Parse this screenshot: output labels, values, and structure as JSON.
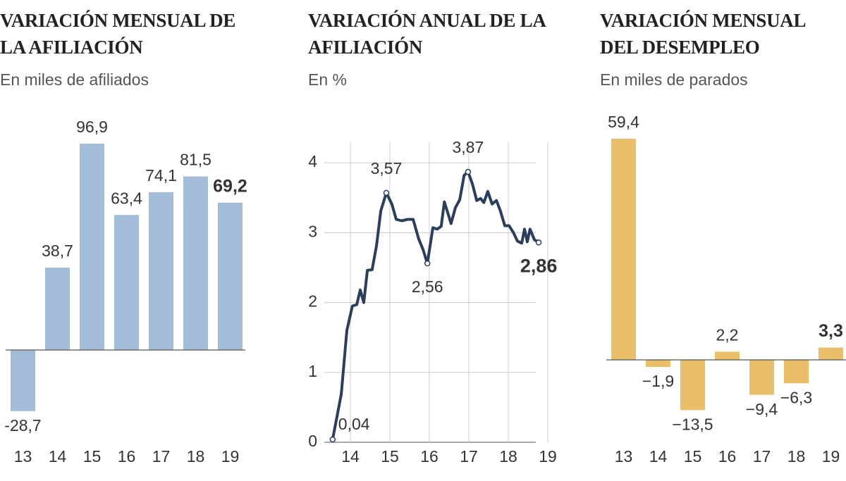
{
  "chart_data": [
    {
      "type": "bar",
      "title": "VARIACIÓN MENSUAL DE LA AFILIACIÓN",
      "subtitle": "En miles de afiliados",
      "categories": [
        "13",
        "14",
        "15",
        "16",
        "17",
        "18",
        "19"
      ],
      "values": [
        -28.7,
        38.7,
        96.9,
        63.4,
        74.1,
        81.5,
        69.2
      ],
      "value_labels": [
        "-28,7",
        "38,7",
        "96,9",
        "63,4",
        "74,1",
        "81,5",
        "69,2"
      ],
      "color": "#a3bcd9"
    },
    {
      "type": "line",
      "title": "VARIACIÓN ANUAL DE LA AFILIACIÓN",
      "subtitle": "En %",
      "x": [
        13.55,
        13.77,
        13.91,
        14.05,
        14.16,
        14.25,
        14.34,
        14.43,
        14.55,
        14.66,
        14.77,
        14.91,
        15.05,
        15.16,
        15.3,
        15.45,
        15.59,
        15.73,
        15.84,
        15.95,
        16.09,
        16.2,
        16.3,
        16.38,
        16.48,
        16.55,
        16.66,
        16.77,
        16.88,
        16.98,
        17.09,
        17.2,
        17.3,
        17.38,
        17.48,
        17.59,
        17.7,
        17.8,
        17.91,
        18.02,
        18.13,
        18.23,
        18.34,
        18.41,
        18.48,
        18.55,
        18.66,
        18.77
      ],
      "values": [
        0.04,
        0.69,
        1.6,
        1.95,
        1.97,
        2.18,
        2.0,
        2.46,
        2.47,
        2.81,
        3.31,
        3.57,
        3.41,
        3.19,
        3.17,
        3.19,
        3.19,
        2.91,
        2.76,
        2.56,
        3.07,
        3.05,
        3.09,
        3.44,
        3.26,
        3.13,
        3.36,
        3.47,
        3.82,
        3.87,
        3.7,
        3.46,
        3.49,
        3.43,
        3.59,
        3.41,
        3.46,
        3.31,
        3.1,
        3.1,
        3.0,
        2.88,
        2.85,
        3.05,
        2.87,
        3.05,
        2.9,
        2.86
      ],
      "value_labels": [
        "0,04",
        null,
        null,
        null,
        null,
        null,
        null,
        null,
        null,
        null,
        null,
        "3,57",
        null,
        null,
        null,
        null,
        null,
        null,
        null,
        "2,56",
        null,
        null,
        null,
        null,
        null,
        null,
        null,
        null,
        null,
        "3,87",
        null,
        null,
        null,
        null,
        null,
        null,
        null,
        null,
        null,
        null,
        null,
        null,
        null,
        null,
        null,
        null,
        null,
        "2,86"
      ],
      "xlim": [
        13.5,
        19.1
      ],
      "xticks": [
        14,
        15,
        16,
        17,
        18,
        19
      ],
      "ylim": [
        0,
        4.3
      ],
      "yticks": [
        0,
        1,
        2,
        3,
        4
      ],
      "grid": true,
      "color": "#2b3f5c"
    },
    {
      "type": "bar",
      "title": "VARIACIÓN MENSUAL DEL DESEMPLEO",
      "subtitle": "En miles de parados",
      "categories": [
        "13",
        "14",
        "15",
        "16",
        "17",
        "18",
        "19"
      ],
      "values": [
        59.4,
        -1.9,
        -13.5,
        2.2,
        -9.4,
        -6.3,
        3.3
      ],
      "value_labels": [
        "59,4",
        "−1,9",
        "−13,5",
        "2,2",
        "−9,4",
        "−6,3",
        "3,3"
      ],
      "color": "#e9bf6a"
    }
  ]
}
